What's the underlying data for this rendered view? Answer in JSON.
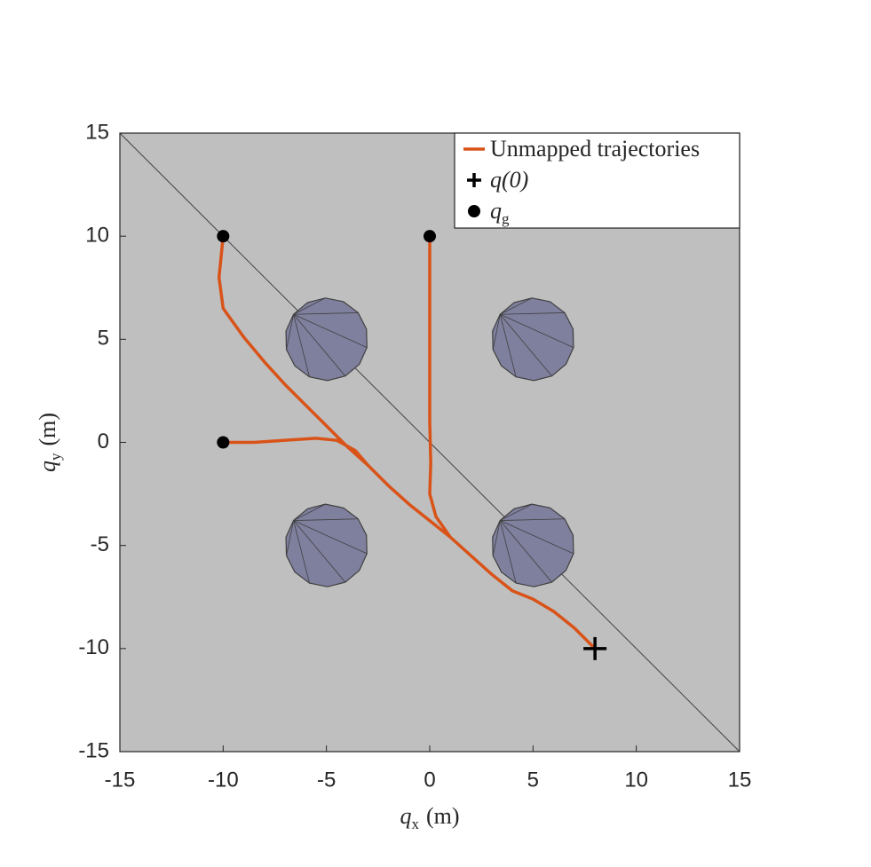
{
  "chart_data": {
    "type": "trajectory",
    "background": "#bfbfbf",
    "xlim": [
      -15,
      15
    ],
    "ylim": [
      -15,
      15
    ],
    "xticks": [
      -15,
      -10,
      -5,
      0,
      5,
      10,
      15
    ],
    "yticks": [
      -15,
      -10,
      -5,
      0,
      5,
      10,
      15
    ],
    "xlabel": {
      "symbol": "q",
      "sub": "x",
      "unit": "(m)"
    },
    "ylabel": {
      "symbol": "q",
      "sub": "y",
      "unit": "(m)"
    },
    "diagonal": {
      "x": [
        -15,
        15
      ],
      "y": [
        15,
        -15
      ]
    },
    "obstacles": [
      {
        "center": [
          -5,
          5
        ],
        "radius": 2
      },
      {
        "center": [
          5,
          5
        ],
        "radius": 2
      },
      {
        "center": [
          -5,
          -5
        ],
        "radius": 2
      },
      {
        "center": [
          5,
          -5
        ],
        "radius": 2
      }
    ],
    "obstacle_color": "#7f7f9e",
    "series": [
      {
        "name": "Unmapped trajectories",
        "color": "#d95319",
        "x": [
          8,
          7,
          6,
          5,
          4,
          3,
          2,
          1,
          0,
          -1,
          -2,
          -3,
          -4,
          -5,
          -6,
          -7,
          -8,
          -9,
          -10,
          -10.2,
          -10,
          null,
          8,
          7,
          6,
          5,
          4,
          3,
          2,
          1,
          0.3,
          0,
          0.05,
          0,
          0,
          0,
          0,
          null,
          8,
          7,
          6,
          5,
          4,
          3,
          2,
          1,
          0,
          -1,
          -2,
          -3,
          -3.6,
          -4.5,
          -5.5,
          -7,
          -8.5,
          -10
        ],
        "y": [
          -10,
          -9,
          -8.2,
          -7.6,
          -7.2,
          -6.4,
          -5.5,
          -4.6,
          -3.8,
          -3,
          -2.1,
          -1.1,
          -0.2,
          0.8,
          1.8,
          2.8,
          3.9,
          5.1,
          6.5,
          8,
          10,
          null,
          -10,
          -9,
          -8.2,
          -7.6,
          -7.2,
          -6.4,
          -5.5,
          -4.6,
          -3.6,
          -2.5,
          -1,
          1,
          4,
          7,
          10,
          null,
          -10,
          -9,
          -8.2,
          -7.6,
          -7.2,
          -6.4,
          -5.5,
          -4.6,
          -3.8,
          -3,
          -2.1,
          -1.1,
          -0.4,
          0.1,
          0.2,
          0.1,
          0,
          0
        ]
      },
      {
        "name": "q(0)",
        "marker": "plus",
        "color": "#000000",
        "x": [
          8
        ],
        "y": [
          -10
        ]
      },
      {
        "name": {
          "symbol": "q",
          "sub": "g"
        },
        "marker": "dot",
        "color": "#000000",
        "x": [
          -10,
          0,
          -10
        ],
        "y": [
          10,
          10,
          0
        ]
      }
    ],
    "legend": "upper right"
  }
}
